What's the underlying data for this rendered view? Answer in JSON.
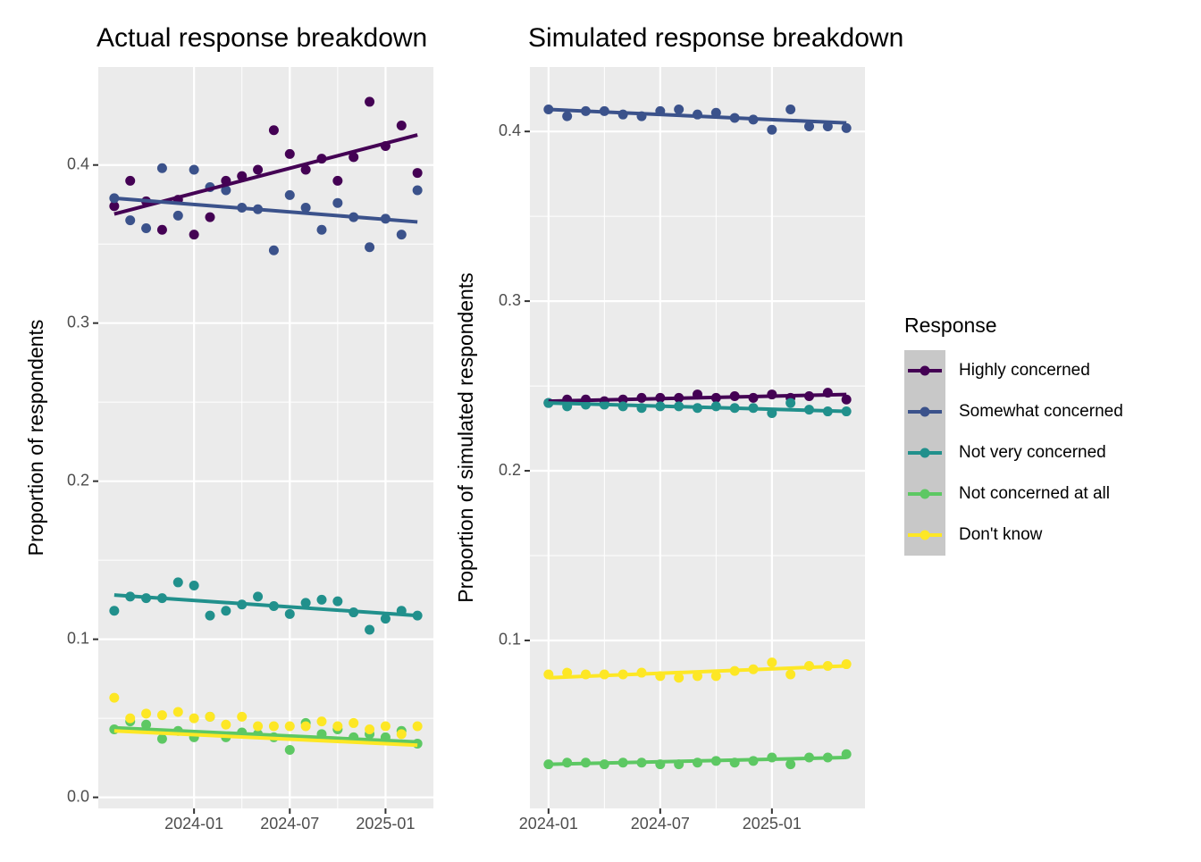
{
  "chart_data": [
    {
      "type": "scatter",
      "title": "Actual response breakdown",
      "y_label": "Proportion of respondents",
      "x": [
        "2023-08",
        "2023-09",
        "2023-10",
        "2023-11",
        "2023-12",
        "2024-01",
        "2024-02",
        "2024-03",
        "2024-04",
        "2024-05",
        "2024-06",
        "2024-07",
        "2024-08",
        "2024-09",
        "2024-10",
        "2024-11",
        "2024-12",
        "2025-01",
        "2025-02",
        "2025-03"
      ],
      "xlim": [
        "2023-07",
        "2025-04"
      ],
      "xticks": [
        "2024-01",
        "2024-07",
        "2025-01"
      ],
      "ylim": [
        -0.007,
        0.462
      ],
      "yticks": [
        {
          "value": 0,
          "label": "0.0"
        },
        0.1,
        0.2,
        0.3,
        0.4
      ],
      "grid": true,
      "series": [
        {
          "name": "Highly concerned",
          "color": "#440154",
          "trend": [
            0.369,
            0.419
          ],
          "values": [
            0.374,
            0.39,
            0.377,
            0.359,
            0.378,
            0.356,
            0.367,
            0.39,
            0.393,
            0.397,
            0.422,
            0.407,
            0.397,
            0.404,
            0.39,
            0.405,
            0.44,
            0.412,
            0.425,
            0.395
          ]
        },
        {
          "name": "Somewhat concerned",
          "color": "#3B528B",
          "trend": [
            0.379,
            0.364
          ],
          "values": [
            0.379,
            0.365,
            0.36,
            0.398,
            0.368,
            0.397,
            0.386,
            0.384,
            0.373,
            0.372,
            0.346,
            0.381,
            0.373,
            0.359,
            0.376,
            0.367,
            0.348,
            0.366,
            0.356,
            0.384
          ]
        },
        {
          "name": "Not very concerned",
          "color": "#21908C",
          "trend": [
            0.128,
            0.115
          ],
          "values": [
            0.118,
            0.127,
            0.126,
            0.126,
            0.136,
            0.134,
            0.115,
            0.118,
            0.122,
            0.127,
            0.121,
            0.116,
            0.123,
            0.125,
            0.124,
            0.117,
            0.106,
            0.113,
            0.118,
            0.115
          ]
        },
        {
          "name": "Not concerned at all",
          "color": "#5DC863",
          "trend": [
            0.044,
            0.035
          ],
          "values": [
            0.043,
            0.048,
            0.046,
            0.037,
            0.042,
            0.038,
            0.051,
            0.038,
            0.041,
            0.04,
            0.038,
            0.03,
            0.047,
            0.04,
            0.043,
            0.038,
            0.04,
            0.038,
            0.042,
            0.034
          ]
        },
        {
          "name": "Don't know",
          "color": "#FDE725",
          "trend": [
            0.042,
            0.033
          ],
          "values": [
            0.063,
            0.05,
            0.053,
            0.052,
            0.054,
            0.05,
            0.051,
            0.046,
            0.051,
            0.045,
            0.045,
            0.045,
            0.045,
            0.048,
            0.045,
            0.047,
            0.043,
            0.045,
            0.04,
            0.045
          ]
        }
      ]
    },
    {
      "type": "scatter",
      "title": "Simulated response breakdown",
      "y_label": "Proportion of simulated respondents",
      "legend_title": "Response",
      "x": [
        "2024-01",
        "2024-02",
        "2024-03",
        "2024-04",
        "2024-05",
        "2024-06",
        "2024-07",
        "2024-08",
        "2024-09",
        "2024-10",
        "2024-11",
        "2024-12",
        "2025-01",
        "2025-02",
        "2025-03",
        "2025-04",
        "2025-05"
      ],
      "xlim": [
        "2023-12",
        "2025-06"
      ],
      "xticks": [
        "2024-01",
        "2024-07",
        "2025-01"
      ],
      "ylim": [
        0.001,
        0.438
      ],
      "yticks": [
        0.1,
        0.2,
        0.3,
        0.4
      ],
      "grid": true,
      "series": [
        {
          "name": "Highly concerned",
          "color": "#440154",
          "trend": [
            0.241,
            0.245
          ],
          "values": [
            0.24,
            0.242,
            0.242,
            0.241,
            0.242,
            0.243,
            0.243,
            0.243,
            0.245,
            0.243,
            0.244,
            0.243,
            0.245,
            0.243,
            0.244,
            0.246,
            0.242
          ]
        },
        {
          "name": "Somewhat concerned",
          "color": "#3B528B",
          "trend": [
            0.413,
            0.405
          ],
          "values": [
            0.413,
            0.409,
            0.412,
            0.412,
            0.41,
            0.409,
            0.412,
            0.413,
            0.41,
            0.411,
            0.408,
            0.407,
            0.401,
            0.413,
            0.403,
            0.403,
            0.402
          ]
        },
        {
          "name": "Not very concerned",
          "color": "#21908C",
          "trend": [
            0.24,
            0.235
          ],
          "values": [
            0.24,
            0.238,
            0.239,
            0.239,
            0.238,
            0.237,
            0.238,
            0.238,
            0.237,
            0.238,
            0.237,
            0.237,
            0.234,
            0.24,
            0.236,
            0.235,
            0.235
          ]
        },
        {
          "name": "Not concerned at all",
          "color": "#5DC863",
          "trend": [
            0.027,
            0.031
          ],
          "values": [
            0.027,
            0.028,
            0.028,
            0.027,
            0.028,
            0.028,
            0.027,
            0.027,
            0.028,
            0.029,
            0.028,
            0.029,
            0.031,
            0.027,
            0.031,
            0.031,
            0.033
          ]
        },
        {
          "name": "Don't know",
          "color": "#FDE725",
          "trend": [
            0.078,
            0.085
          ],
          "values": [
            0.08,
            0.081,
            0.08,
            0.08,
            0.08,
            0.081,
            0.079,
            0.078,
            0.079,
            0.079,
            0.082,
            0.083,
            0.087,
            0.08,
            0.085,
            0.085,
            0.086
          ]
        }
      ]
    }
  ]
}
